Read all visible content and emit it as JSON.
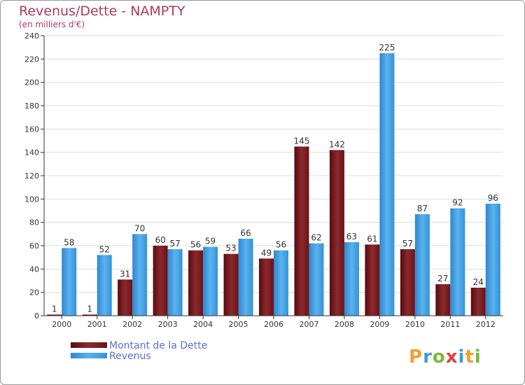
{
  "title": "Revenus/Dette - NAMPTY",
  "subtitle": "(en milliers d'€)",
  "logo_text": "Proxiti",
  "colors": {
    "dette": "#7a1418",
    "revenus": "#3a9be0",
    "title": "#b03a5e",
    "legend": "#5b6fd8"
  },
  "chart_data": {
    "type": "bar",
    "title": "Revenus/Dette - NAMPTY",
    "subtitle": "(en milliers d'€)",
    "categories": [
      "2000",
      "2001",
      "2002",
      "2003",
      "2004",
      "2005",
      "2006",
      "2007",
      "2008",
      "2009",
      "2010",
      "2011",
      "2012"
    ],
    "series": [
      {
        "name": "Montant de la Dette",
        "values": [
          1,
          1,
          31,
          60,
          56,
          53,
          49,
          145,
          142,
          61,
          57,
          27,
          24
        ]
      },
      {
        "name": "Revenus",
        "values": [
          58,
          52,
          70,
          57,
          59,
          66,
          56,
          62,
          63,
          225,
          87,
          92,
          96
        ]
      }
    ],
    "ylim": [
      0,
      240
    ],
    "yticks": [
      0,
      20,
      40,
      60,
      80,
      100,
      120,
      140,
      160,
      180,
      200,
      220,
      240
    ],
    "grid": true,
    "legend": "bottom-left"
  }
}
